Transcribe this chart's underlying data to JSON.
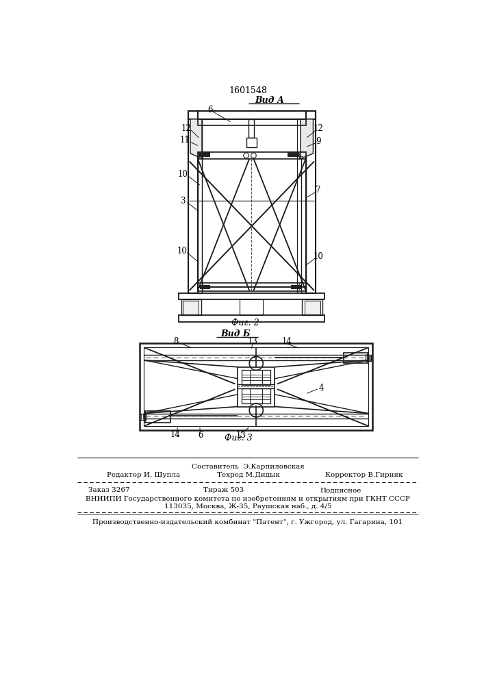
{
  "patent_number": "1601548",
  "fig2_title": "Вид А",
  "fig3_title": "Вид Б",
  "fig2_caption": "Фиг. 2",
  "fig3_caption": "Фиг. 3",
  "footer_line1": "Составитель  Э.Карпиловская",
  "footer_line2_left": "Редактор И. Шупла",
  "footer_line2_mid": "Техред М.Дидык",
  "footer_line2_right": "Корректор В.Гирняк",
  "footer_line3_left": "Заказ 3267",
  "footer_line3_mid": "Тираж 503",
  "footer_line3_right": "Подписное",
  "footer_line4": "ВНИИПИ Государственного комитета по изобретениям и открытиям при ГКНТ СССР",
  "footer_line5": "113035, Москва, Ж-35, Раушская наб., д. 4/5",
  "footer_line6": "Производственно-издательский комбинат \"Патент\", г. Ужгород, ул. Гагарина, 101",
  "line_color": "#1a1a1a",
  "dashed_color": "#555555"
}
